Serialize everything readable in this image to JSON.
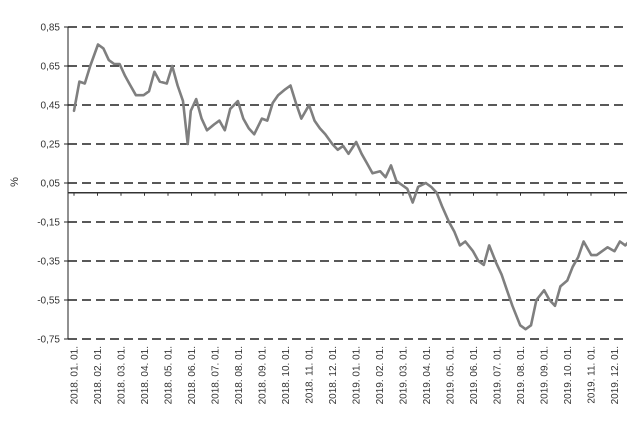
{
  "chart_data": {
    "type": "line",
    "title": "",
    "xlabel": "",
    "ylabel": "%",
    "ylim": [
      -0.75,
      0.85
    ],
    "yticks": [
      0.85,
      0.65,
      0.45,
      0.25,
      0.05,
      -0.15,
      -0.35,
      -0.55,
      -0.75
    ],
    "ytick_labels": [
      "0,85",
      "0,65",
      "0,45",
      "0,25",
      "0,05",
      "-0,15",
      "-0,35",
      "-0,55",
      "-0,75"
    ],
    "grid": "horizontal dashed",
    "legend": "none",
    "baseline": 0,
    "line_color": "#7f7f7f",
    "grid_color": "#222222",
    "x_tick_labels": [
      "2018. 01. 01.",
      "2018. 02. 01.",
      "2018. 03. 01.",
      "2018. 04. 01.",
      "2018. 05. 01.",
      "2018. 06. 01.",
      "2018. 07. 01.",
      "2018. 08. 01.",
      "2018. 09. 01.",
      "2018. 10. 01.",
      "2018. 11. 01.",
      "2018. 12. 01.",
      "2019. 01. 01.",
      "2019. 02. 01.",
      "2019. 03. 01.",
      "2019. 04. 01.",
      "2019. 05. 01.",
      "2019. 06. 01.",
      "2019. 07. 01.",
      "2019. 08. 01.",
      "2019. 09. 01.",
      "2019. 10. 01.",
      "2019. 11. 01.",
      "2019. 12. 01."
    ],
    "series": [
      {
        "x": [
          "2018-01-01",
          "2018-01-08",
          "2018-01-15",
          "2018-01-22",
          "2018-02-01",
          "2018-02-08",
          "2018-02-15",
          "2018-02-22",
          "2018-03-01",
          "2018-03-08",
          "2018-03-15",
          "2018-03-22",
          "2018-04-01",
          "2018-04-08",
          "2018-04-15",
          "2018-04-22",
          "2018-05-01",
          "2018-05-08",
          "2018-05-15",
          "2018-05-22",
          "2018-05-28",
          "2018-06-01",
          "2018-06-08",
          "2018-06-15",
          "2018-06-22",
          "2018-07-01",
          "2018-07-08",
          "2018-07-15",
          "2018-07-22",
          "2018-08-01",
          "2018-08-08",
          "2018-08-15",
          "2018-08-22",
          "2018-09-01",
          "2018-09-08",
          "2018-09-15",
          "2018-09-22",
          "2018-10-01",
          "2018-10-08",
          "2018-10-15",
          "2018-10-22",
          "2018-11-01",
          "2018-11-08",
          "2018-11-15",
          "2018-11-22",
          "2018-12-01",
          "2018-12-08",
          "2018-12-15",
          "2018-12-22",
          "2019-01-01",
          "2019-01-08",
          "2019-01-15",
          "2019-01-22",
          "2019-02-01",
          "2019-02-08",
          "2019-02-15",
          "2019-02-22",
          "2019-03-01",
          "2019-03-08",
          "2019-03-15",
          "2019-03-22",
          "2019-04-01",
          "2019-04-08",
          "2019-04-15",
          "2019-04-22",
          "2019-05-01",
          "2019-05-08",
          "2019-05-15",
          "2019-05-22",
          "2019-06-01",
          "2019-06-08",
          "2019-06-15",
          "2019-06-22",
          "2019-07-01",
          "2019-07-08",
          "2019-07-15",
          "2019-07-22",
          "2019-08-01",
          "2019-08-08",
          "2019-08-15",
          "2019-08-22",
          "2019-09-01",
          "2019-09-08",
          "2019-09-15",
          "2019-09-22",
          "2019-10-01",
          "2019-10-08",
          "2019-10-15",
          "2019-10-22",
          "2019-11-01",
          "2019-11-08",
          "2019-11-15",
          "2019-11-22",
          "2019-12-01",
          "2019-12-08",
          "2019-12-15",
          "2019-12-22",
          "2019-12-31"
        ],
        "y": [
          0.42,
          0.57,
          0.56,
          0.65,
          0.76,
          0.74,
          0.68,
          0.66,
          0.66,
          0.6,
          0.55,
          0.5,
          0.5,
          0.52,
          0.62,
          0.57,
          0.56,
          0.65,
          0.55,
          0.47,
          0.25,
          0.42,
          0.48,
          0.38,
          0.32,
          0.35,
          0.37,
          0.32,
          0.43,
          0.47,
          0.38,
          0.33,
          0.3,
          0.38,
          0.37,
          0.46,
          0.5,
          0.53,
          0.55,
          0.46,
          0.38,
          0.45,
          0.37,
          0.33,
          0.3,
          0.25,
          0.22,
          0.24,
          0.2,
          0.26,
          0.2,
          0.15,
          0.1,
          0.11,
          0.08,
          0.14,
          0.06,
          0.04,
          0.02,
          -0.05,
          0.03,
          0.05,
          0.03,
          0.0,
          -0.07,
          -0.15,
          -0.2,
          -0.27,
          -0.25,
          -0.3,
          -0.35,
          -0.37,
          -0.27,
          -0.36,
          -0.42,
          -0.5,
          -0.58,
          -0.68,
          -0.7,
          -0.68,
          -0.55,
          -0.5,
          -0.55,
          -0.58,
          -0.48,
          -0.45,
          -0.38,
          -0.33,
          -0.25,
          -0.32,
          -0.32,
          -0.3,
          -0.28,
          -0.3,
          -0.25,
          -0.27,
          -0.24,
          -0.25
        ]
      }
    ]
  }
}
